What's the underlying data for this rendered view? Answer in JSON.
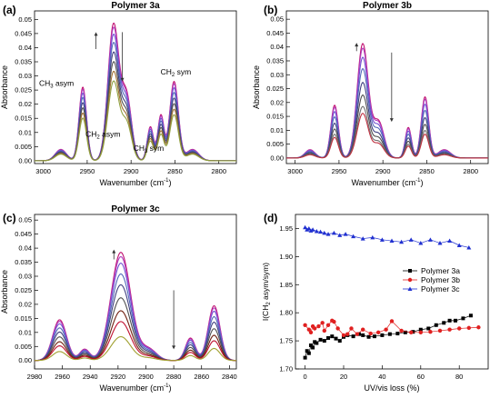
{
  "panels": [
    {
      "letter": "(a)",
      "chart_data": {
        "type": "line",
        "title": "Polymer 3a",
        "xlabel": "Wavenumber (cm",
        "xlabel_sup": "-1",
        "ylabel": "Absorbance",
        "xlim": [
          3010,
          2780
        ],
        "ylim": [
          -0.001,
          0.053
        ],
        "xticks": [
          3000,
          2950,
          2900,
          2850,
          2800
        ],
        "yticks": [
          0.0,
          0.005,
          0.01,
          0.015,
          0.02,
          0.025,
          0.03,
          0.035,
          0.04,
          0.045,
          0.05
        ],
        "ytick_labels": [
          "0.00",
          "0.005",
          "0.01",
          "0.015",
          "0.02",
          "0.025",
          "0.03",
          "0.035",
          "0.04",
          "0.045",
          "0.05"
        ],
        "peaks": [
          {
            "x": 2980,
            "w": 9,
            "h": 0.004
          },
          {
            "x": 2955,
            "w": 6,
            "h": 0.026
          },
          {
            "x": 2920,
            "w": 9,
            "h": 0.048
          },
          {
            "x": 2905,
            "w": 8,
            "h": 0.022
          },
          {
            "x": 2878,
            "w": 5,
            "h": 0.012
          },
          {
            "x": 2866,
            "w": 5,
            "h": 0.016
          },
          {
            "x": 2851,
            "w": 7,
            "h": 0.028
          },
          {
            "x": 2830,
            "w": 10,
            "h": 0.004
          }
        ],
        "curve_scales": [
          1.0,
          0.97,
          0.92,
          0.86,
          0.79,
          0.72,
          0.65,
          0.58
        ],
        "curve_colors": [
          "#c01070",
          "#b040c0",
          "#7050d0",
          "#5068b8",
          "#404080",
          "#505050",
          "#a07030",
          "#90a040"
        ],
        "annotations": [
          {
            "text": "CH",
            "sub": "3",
            "rest": " asym",
            "x": 2985,
            "y": 0.0265
          },
          {
            "text": "CH",
            "sub": "2",
            "rest": " asym",
            "x": 2932,
            "y": 0.0085
          },
          {
            "text": "CH",
            "sub": "3",
            "rest": " sym",
            "x": 2880,
            "y": 0.0035
          },
          {
            "text": "CH",
            "sub": "2",
            "rest": " sym",
            "x": 2849,
            "y": 0.0305
          }
        ],
        "arrows": [
          {
            "x": 2940,
            "from": 0.0395,
            "to": 0.0455
          },
          {
            "x": 2910,
            "from": 0.0455,
            "to": 0.028
          }
        ]
      }
    },
    {
      "letter": "(b)",
      "chart_data": {
        "type": "line",
        "title": "Polymer 3b",
        "xlabel": "Wavenumber (cm",
        "xlabel_sup": "-1",
        "ylabel": "Absorbance",
        "xlim": [
          3010,
          2780
        ],
        "ylim": [
          -0.002,
          0.053
        ],
        "xticks": [
          3000,
          2950,
          2900,
          2850,
          2800
        ],
        "yticks": [
          0.0,
          0.005,
          0.01,
          0.015,
          0.02,
          0.025,
          0.03,
          0.035,
          0.04,
          0.045,
          0.05
        ],
        "ytick_labels": [
          "0.00",
          "0.005",
          "0.01",
          "0.015",
          "0.02",
          "0.025",
          "0.03",
          "0.035",
          "0.04",
          "0.045",
          "0.05"
        ],
        "peaks": [
          {
            "x": 2983,
            "w": 8,
            "h": 0.003
          },
          {
            "x": 2955,
            "w": 6,
            "h": 0.019
          },
          {
            "x": 2923,
            "w": 9,
            "h": 0.041
          },
          {
            "x": 2905,
            "w": 9,
            "h": 0.013
          },
          {
            "x": 2871,
            "w": 5,
            "h": 0.011
          },
          {
            "x": 2852,
            "w": 6,
            "h": 0.022
          },
          {
            "x": 2830,
            "w": 10,
            "h": 0.003
          }
        ],
        "curve_scales": [
          1.0,
          0.96,
          0.88,
          0.78,
          0.66,
          0.55,
          0.45,
          0.39
        ],
        "curve_colors": [
          "#c01070",
          "#b040c0",
          "#7050d0",
          "#5068b8",
          "#404080",
          "#505050",
          "#707070",
          "#c03040"
        ],
        "annotations": [],
        "arrows": [
          {
            "x": 2930,
            "from": 0.0385,
            "to": 0.0415
          },
          {
            "x": 2890,
            "from": 0.038,
            "to": 0.013
          }
        ]
      }
    },
    {
      "letter": "(c)",
      "chart_data": {
        "type": "line",
        "title": "Polymer 3c",
        "xlabel": "Wavenumber (cm",
        "xlabel_sup": "-1",
        "ylabel": "Absorbance",
        "xlim": [
          2980,
          2835
        ],
        "ylim": [
          -0.003,
          0.052
        ],
        "xticks": [
          2980,
          2960,
          2940,
          2920,
          2900,
          2880,
          2860,
          2840
        ],
        "yticks": [
          0.0,
          0.005,
          0.01,
          0.015,
          0.02,
          0.025,
          0.03,
          0.035,
          0.04,
          0.045,
          0.05
        ],
        "ytick_labels": [
          "0.00",
          "0.005",
          "0.01",
          "0.015",
          "0.02",
          "0.025",
          "0.03",
          "0.035",
          "0.04",
          "0.045",
          "0.05"
        ],
        "peaks": [
          {
            "x": 2962,
            "w": 7,
            "h": 0.0145
          },
          {
            "x": 2944,
            "w": 5,
            "h": 0.004
          },
          {
            "x": 2918,
            "w": 10,
            "h": 0.0385
          },
          {
            "x": 2898,
            "w": 8,
            "h": 0.004
          },
          {
            "x": 2868,
            "w": 5,
            "h": 0.008
          },
          {
            "x": 2851,
            "w": 6,
            "h": 0.0195
          }
        ],
        "curve_scales": [
          1.0,
          0.96,
          0.9,
          0.8,
          0.7,
          0.58,
          0.46,
          0.36,
          0.22
        ],
        "curve_colors": [
          "#c01070",
          "#b040c0",
          "#7050d0",
          "#5068b8",
          "#404080",
          "#505050",
          "#702010",
          "#c01030",
          "#a0a030"
        ],
        "annotations": [],
        "arrows": [
          {
            "x": 2923,
            "from": 0.036,
            "to": 0.0395
          },
          {
            "x": 2880,
            "from": 0.025,
            "to": 0.004
          }
        ]
      }
    },
    {
      "letter": "(d)",
      "chart_data": {
        "type": "scatter",
        "title": "",
        "xlabel": "UV/vis loss (%)",
        "ylabel_main": "I(CH",
        "ylabel_sub": "2",
        "ylabel_rest": " asym/sym)",
        "xlim": [
          -5,
          95
        ],
        "ylim": [
          1.7,
          1.975
        ],
        "xticks": [
          0,
          20,
          40,
          60,
          80
        ],
        "yticks": [
          1.7,
          1.75,
          1.8,
          1.85,
          1.9,
          1.95
        ],
        "ytick_labels": [
          "1.70",
          "1.75",
          "1.80",
          "1.85",
          "1.90",
          "1.95"
        ],
        "legend_position": "center-right",
        "series": [
          {
            "name": "Polymer 3a",
            "color": "#000000",
            "marker": "square",
            "points": [
              [
                0,
                1.72
              ],
              [
                1,
                1.732
              ],
              [
                2,
                1.728
              ],
              [
                3,
                1.742
              ],
              [
                4,
                1.738
              ],
              [
                5,
                1.748
              ],
              [
                6,
                1.746
              ],
              [
                8,
                1.752
              ],
              [
                10,
                1.75
              ],
              [
                12,
                1.755
              ],
              [
                14,
                1.758
              ],
              [
                16,
                1.754
              ],
              [
                18,
                1.75
              ],
              [
                20,
                1.757
              ],
              [
                22,
                1.76
              ],
              [
                25,
                1.758
              ],
              [
                28,
                1.762
              ],
              [
                30,
                1.76
              ],
              [
                33,
                1.757
              ],
              [
                36,
                1.758
              ],
              [
                40,
                1.76
              ],
              [
                44,
                1.762
              ],
              [
                48,
                1.763
              ],
              [
                52,
                1.765
              ],
              [
                56,
                1.766
              ],
              [
                60,
                1.77
              ],
              [
                64,
                1.772
              ],
              [
                68,
                1.778
              ],
              [
                72,
                1.782
              ],
              [
                75,
                1.786
              ],
              [
                78,
                1.786
              ],
              [
                82,
                1.79
              ],
              [
                86,
                1.795
              ]
            ]
          },
          {
            "name": "Polymer 3b",
            "color": "#e02020",
            "marker": "circle",
            "points": [
              [
                0,
                1.778
              ],
              [
                2,
                1.77
              ],
              [
                3,
                1.765
              ],
              [
                4,
                1.776
              ],
              [
                5,
                1.772
              ],
              [
                7,
                1.776
              ],
              [
                9,
                1.782
              ],
              [
                10,
                1.768
              ],
              [
                12,
                1.778
              ],
              [
                14,
                1.786
              ],
              [
                15,
                1.784
              ],
              [
                17,
                1.772
              ],
              [
                20,
                1.76
              ],
              [
                22,
                1.762
              ],
              [
                24,
                1.772
              ],
              [
                27,
                1.762
              ],
              [
                30,
                1.77
              ],
              [
                34,
                1.763
              ],
              [
                38,
                1.765
              ],
              [
                42,
                1.77
              ],
              [
                45,
                1.785
              ],
              [
                50,
                1.768
              ],
              [
                55,
                1.765
              ],
              [
                60,
                1.765
              ],
              [
                65,
                1.766
              ],
              [
                70,
                1.768
              ],
              [
                75,
                1.77
              ],
              [
                80,
                1.772
              ],
              [
                85,
                1.773
              ],
              [
                90,
                1.774
              ]
            ]
          },
          {
            "name": "Polymer 3c",
            "color": "#2030d0",
            "marker": "triangle",
            "points": [
              [
                0,
                1.952
              ],
              [
                1,
                1.948
              ],
              [
                2,
                1.95
              ],
              [
                3,
                1.946
              ],
              [
                4,
                1.948
              ],
              [
                6,
                1.945
              ],
              [
                8,
                1.944
              ],
              [
                10,
                1.942
              ],
              [
                12,
                1.94
              ],
              [
                15,
                1.942
              ],
              [
                18,
                1.938
              ],
              [
                21,
                1.94
              ],
              [
                25,
                1.936
              ],
              [
                30,
                1.932
              ],
              [
                35,
                1.934
              ],
              [
                40,
                1.93
              ],
              [
                45,
                1.928
              ],
              [
                50,
                1.926
              ],
              [
                55,
                1.93
              ],
              [
                60,
                1.924
              ],
              [
                65,
                1.93
              ],
              [
                70,
                1.924
              ],
              [
                75,
                1.928
              ],
              [
                80,
                1.92
              ],
              [
                85,
                1.916
              ]
            ]
          }
        ]
      }
    }
  ]
}
